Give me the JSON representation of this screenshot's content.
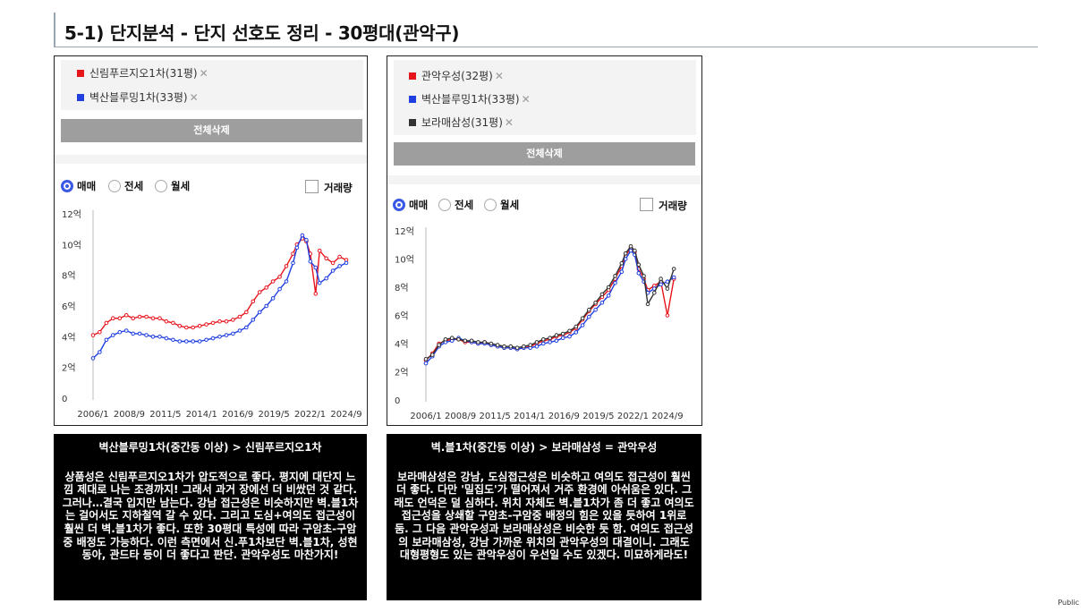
{
  "header": {
    "title": "5-1) 단지분석 - 단지 선호도 정리 - 30평대(관악구)"
  },
  "panels": [
    {
      "legend": [
        {
          "label": "신림푸르지오1차(31평)",
          "color": "#e8141c"
        },
        {
          "label": "벽산블루밍1차(33평)",
          "color": "#1f3fe0"
        }
      ],
      "delete_all": "전체삭제",
      "radios": [
        "매매",
        "전세",
        "월세"
      ],
      "selected_radio": "매매",
      "volume_label": "거래량",
      "chart_data": {
        "type": "line",
        "y_ticks": [
          "12억",
          "10억",
          "8억",
          "6억",
          "4억",
          "2억",
          "0"
        ],
        "x_ticks": [
          "2006/1",
          "2008/9",
          "2011/5",
          "2014/1",
          "2016/9",
          "2019/5",
          "2022/1",
          "2024/9"
        ],
        "ylim": [
          0,
          12
        ],
        "series": [
          {
            "name": "신림푸르지오1차(31평)",
            "color": "#e8141c",
            "x": [
              2006.0,
              2006.5,
              2007.0,
              2007.5,
              2008.0,
              2008.5,
              2009.0,
              2009.5,
              2010.0,
              2010.5,
              2011.0,
              2011.5,
              2012.0,
              2012.5,
              2013.0,
              2013.5,
              2014.0,
              2014.5,
              2015.0,
              2015.5,
              2016.0,
              2016.5,
              2017.0,
              2017.5,
              2018.0,
              2018.5,
              2019.0,
              2019.5,
              2020.0,
              2020.5,
              2021.0,
              2021.3,
              2021.7,
              2022.0,
              2022.3,
              2022.7,
              2023.0,
              2023.5,
              2024.0,
              2024.5,
              2025.0
            ],
            "y": [
              4.1,
              4.3,
              4.9,
              5.2,
              5.2,
              5.4,
              5.2,
              5.3,
              5.3,
              5.2,
              5.2,
              5.0,
              4.9,
              4.7,
              4.6,
              4.6,
              4.7,
              4.8,
              4.9,
              5.0,
              5.0,
              5.1,
              5.3,
              5.6,
              6.3,
              6.9,
              7.2,
              7.6,
              7.9,
              8.6,
              9.4,
              10.0,
              10.4,
              10.2,
              9.4,
              6.8,
              9.6,
              9.1,
              8.8,
              9.2,
              9.0
            ]
          },
          {
            "name": "벽산블루밍1차(33평)",
            "color": "#1f3fe0",
            "x": [
              2006.0,
              2006.5,
              2007.0,
              2007.5,
              2008.0,
              2008.5,
              2009.0,
              2009.5,
              2010.0,
              2010.5,
              2011.0,
              2011.5,
              2012.0,
              2012.5,
              2013.0,
              2013.5,
              2014.0,
              2014.5,
              2015.0,
              2015.5,
              2016.0,
              2016.5,
              2017.0,
              2017.5,
              2018.0,
              2018.5,
              2019.0,
              2019.5,
              2020.0,
              2020.5,
              2021.0,
              2021.3,
              2021.7,
              2022.0,
              2022.3,
              2022.7,
              2023.0,
              2023.5,
              2024.0,
              2024.5,
              2025.0
            ],
            "y": [
              2.6,
              3.0,
              3.8,
              4.1,
              4.3,
              4.4,
              4.2,
              4.2,
              4.1,
              4.0,
              4.0,
              3.9,
              3.8,
              3.7,
              3.7,
              3.7,
              3.7,
              3.8,
              3.9,
              4.0,
              4.1,
              4.2,
              4.4,
              4.6,
              5.1,
              5.6,
              6.0,
              6.5,
              7.1,
              7.6,
              8.8,
              9.8,
              10.6,
              10.3,
              8.9,
              8.5,
              7.5,
              7.8,
              8.3,
              8.6,
              8.8
            ]
          }
        ]
      },
      "note_head": "벽산블루밍1차(중간동 이상) > 신림푸르지오1차",
      "note_body": "상품성은 신림푸르지오1차가 압도적으로 좋다. 평지에 대단지 느낌 제대로 나는 조경까지! 그래서 과거 장에선 더 비쌌던 것 같다. 그러나…결국 입지만 남는다. 강남 접근성은 비슷하지만 벽.블1차는 걸어서도 지하철역 갈 수 있다. 그리고 도심+여의도 접근성이 훨씬 더 벽.블1차가 좋다. 또한 30평대 특성에 따라 구암초-구암중 배정도 가능하다. 이런 측면에서 신.푸1차보단 벽.블1차, 성현동아, 관드타 등이 더 좋다고 판단. 관악우성도 마찬가지!"
    },
    {
      "legend": [
        {
          "label": "관악우성(32평)",
          "color": "#e8141c"
        },
        {
          "label": "벽산블루밍1차(33평)",
          "color": "#1f3fe0"
        },
        {
          "label": "보라매삼성(31평)",
          "color": "#333333"
        }
      ],
      "delete_all": "전체삭제",
      "radios": [
        "매매",
        "전세",
        "월세"
      ],
      "selected_radio": "매매",
      "volume_label": "거래량",
      "chart_data": {
        "type": "line",
        "y_ticks": [
          "12억",
          "10억",
          "8억",
          "6억",
          "4억",
          "2억",
          "0"
        ],
        "x_ticks": [
          "2006/1",
          "2008/9",
          "2011/5",
          "2014/1",
          "2016/9",
          "2019/5",
          "2022/1",
          "2024/9"
        ],
        "ylim": [
          0,
          12
        ],
        "series": [
          {
            "name": "관악우성(32평)",
            "color": "#e8141c",
            "x": [
              2006.0,
              2006.5,
              2007.0,
              2007.5,
              2008.0,
              2008.5,
              2009.0,
              2009.5,
              2010.0,
              2010.5,
              2011.0,
              2011.5,
              2012.0,
              2012.5,
              2013.0,
              2013.5,
              2014.0,
              2014.5,
              2015.0,
              2015.5,
              2016.0,
              2016.5,
              2017.0,
              2017.5,
              2018.0,
              2018.5,
              2019.0,
              2019.5,
              2020.0,
              2020.5,
              2021.0,
              2021.3,
              2021.7,
              2022.0,
              2022.3,
              2022.7,
              2023.0,
              2023.5,
              2024.0,
              2024.5,
              2025.0
            ],
            "y": [
              2.8,
              3.3,
              4.0,
              4.2,
              4.3,
              4.3,
              4.1,
              4.1,
              4.0,
              4.1,
              3.9,
              3.8,
              3.7,
              3.7,
              3.6,
              3.7,
              3.8,
              4.0,
              4.2,
              4.3,
              4.5,
              4.6,
              4.8,
              5.1,
              5.7,
              6.3,
              6.8,
              7.3,
              7.8,
              8.6,
              9.5,
              10.2,
              10.8,
              10.5,
              9.3,
              8.6,
              7.8,
              8.1,
              8.4,
              6.0,
              8.6
            ]
          },
          {
            "name": "벽산블루밍1차(33평)",
            "color": "#1f3fe0",
            "x": [
              2006.0,
              2006.5,
              2007.0,
              2007.5,
              2008.0,
              2008.5,
              2009.0,
              2009.5,
              2010.0,
              2010.5,
              2011.0,
              2011.5,
              2012.0,
              2012.5,
              2013.0,
              2013.5,
              2014.0,
              2014.5,
              2015.0,
              2015.5,
              2016.0,
              2016.5,
              2017.0,
              2017.5,
              2018.0,
              2018.5,
              2019.0,
              2019.5,
              2020.0,
              2020.5,
              2021.0,
              2021.3,
              2021.7,
              2022.0,
              2022.3,
              2022.7,
              2023.0,
              2023.5,
              2024.0,
              2024.5,
              2025.0
            ],
            "y": [
              2.6,
              3.1,
              3.8,
              4.1,
              4.2,
              4.4,
              4.2,
              4.1,
              4.0,
              4.0,
              3.9,
              3.8,
              3.7,
              3.7,
              3.6,
              3.7,
              3.7,
              3.8,
              4.0,
              4.1,
              4.2,
              4.4,
              4.5,
              4.8,
              5.3,
              5.9,
              6.4,
              6.9,
              7.4,
              8.3,
              9.1,
              10.0,
              10.6,
              10.3,
              9.0,
              8.4,
              7.6,
              7.9,
              8.2,
              8.4,
              8.7
            ]
          },
          {
            "name": "보라매삼성(31평)",
            "color": "#333333",
            "x": [
              2006.0,
              2006.5,
              2007.0,
              2007.5,
              2008.0,
              2008.5,
              2009.0,
              2009.5,
              2010.0,
              2010.5,
              2011.0,
              2011.5,
              2012.0,
              2012.5,
              2013.0,
              2013.5,
              2014.0,
              2014.5,
              2015.0,
              2015.5,
              2016.0,
              2016.5,
              2017.0,
              2017.5,
              2018.0,
              2018.5,
              2019.0,
              2019.5,
              2020.0,
              2020.5,
              2021.0,
              2021.3,
              2021.7,
              2022.0,
              2022.3,
              2022.7,
              2023.0,
              2023.5,
              2024.0,
              2024.5,
              2025.0
            ],
            "y": [
              2.9,
              3.2,
              3.9,
              4.3,
              4.4,
              4.3,
              4.2,
              4.2,
              4.1,
              4.1,
              4.0,
              3.9,
              3.8,
              3.8,
              3.7,
              3.8,
              3.9,
              4.1,
              4.3,
              4.4,
              4.6,
              4.7,
              4.9,
              5.2,
              5.8,
              6.4,
              6.9,
              7.5,
              8.0,
              8.8,
              9.7,
              10.4,
              10.9,
              10.6,
              9.6,
              8.8,
              6.8,
              7.6,
              8.6,
              7.9,
              9.3
            ]
          }
        ]
      },
      "note_head": "벽.블1차(중간동 이상) > 보라매삼성 = 관악우성",
      "note_body": "보라매삼성은 강남, 도심접근성은 비슷하고 여의도 접근성이 훨씬 더 좋다. 다만 '밀집도'가 떨어져서 거주 환경에 아쉬움은 있다. 그래도 언덕은 덜 심하다. 위치 자체도 벽.블1차가 좀 더 좋고 여의도접근성을 상쇄할 구암초-구암중 배정의 힘은 있을 듯하여 1위로 둠. 그 다음 관악우성과 보라매삼성은 비슷한 듯 함. 여의도 접근성의 보라매삼성, 강남 가까운 위치의 관악우성의 대결이니. 그래도 대형평형도 있는 관악우성이 우선일 수도 있겠다. 미묘하게라도!"
    }
  ],
  "footer": {
    "label": "Public"
  }
}
